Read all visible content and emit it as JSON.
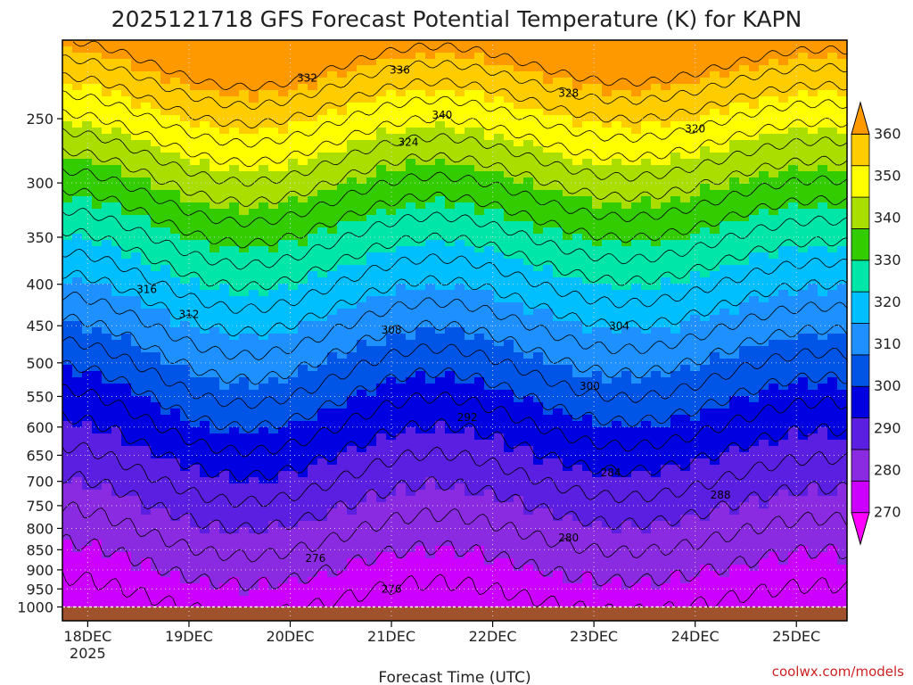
{
  "title": "2025121718 GFS Forecast Potential Temperature (K) for KAPN",
  "xlabel": "Forecast Time (UTC)",
  "credit": "coolwx.com/models",
  "colors": {
    "terrain": "#a0522d",
    "bands": [
      "#ff00ff",
      "#cc00ff",
      "#8a2be2",
      "#5a1fe0",
      "#0000e0",
      "#0055e6",
      "#1e90ff",
      "#00bfff",
      "#00e5a8",
      "#33cc00",
      "#aadd00",
      "#ffff00",
      "#ffcc00",
      "#ff9900"
    ]
  },
  "chart_data": {
    "type": "heatmap",
    "title": "2025121718 GFS Forecast Potential Temperature (K) for KAPN",
    "xlabel": "Forecast Time (UTC)",
    "ylabel": "",
    "x_ticks": [
      "18DEC",
      "19DEC",
      "20DEC",
      "21DEC",
      "22DEC",
      "23DEC",
      "24DEC",
      "25DEC"
    ],
    "x_tick_hours": [
      6,
      30,
      54,
      78,
      102,
      126,
      150,
      174
    ],
    "x_sub_label": "2025",
    "x_range_hours": [
      0,
      186
    ],
    "y_ticks": [
      250,
      300,
      350,
      400,
      450,
      500,
      550,
      600,
      650,
      700,
      750,
      800,
      850,
      900,
      950,
      1000
    ],
    "y_range_hPa": [
      200,
      1040
    ],
    "y_scale": "log-pressure",
    "colorbar_ticks": [
      270,
      280,
      290,
      300,
      310,
      320,
      330,
      340,
      350,
      360
    ],
    "colorbar_range": [
      260,
      370
    ],
    "contour_interval_K": 4,
    "grid": true,
    "surface_pressure_hPa": 1000,
    "labeled_contours": [
      {
        "value": 276,
        "hour": 60,
        "p": 880
      },
      {
        "value": 276,
        "hour": 78,
        "p": 960
      },
      {
        "value": 280,
        "hour": 120,
        "p": 830
      },
      {
        "value": 284,
        "hour": 130,
        "p": 690
      },
      {
        "value": 288,
        "hour": 156,
        "p": 735
      },
      {
        "value": 292,
        "hour": 96,
        "p": 590
      },
      {
        "value": 300,
        "hour": 125,
        "p": 540
      },
      {
        "value": 304,
        "hour": 132,
        "p": 455
      },
      {
        "value": 308,
        "hour": 78,
        "p": 460
      },
      {
        "value": 312,
        "hour": 30,
        "p": 440
      },
      {
        "value": 316,
        "hour": 20,
        "p": 410
      },
      {
        "value": 320,
        "hour": 150,
        "p": 260
      },
      {
        "value": 324,
        "hour": 82,
        "p": 270
      },
      {
        "value": 328,
        "hour": 120,
        "p": 235
      },
      {
        "value": 332,
        "hour": 58,
        "p": 225
      },
      {
        "value": 336,
        "hour": 80,
        "p": 220
      },
      {
        "value": 340,
        "hour": 90,
        "p": 250
      }
    ]
  }
}
